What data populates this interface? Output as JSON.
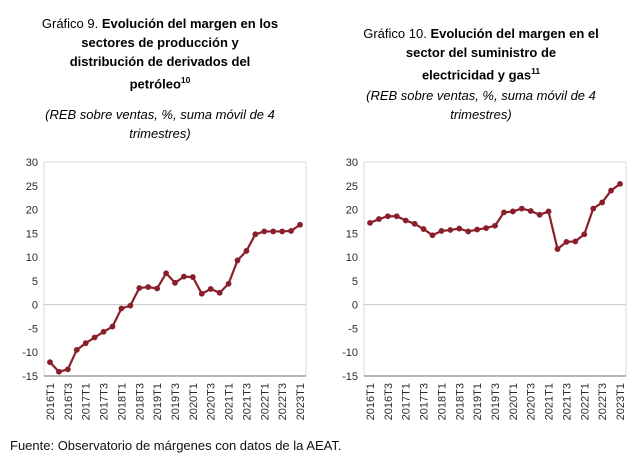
{
  "footer": {
    "text": "Fuente: Observatorio de márgenes con datos de la AEAT."
  },
  "chart_data": [
    {
      "type": "line",
      "title_prefix": "Gráfico 9. ",
      "title_line1": "Evolución del margen en los",
      "title_line2": "sectores de producción y",
      "title_line3": "distribución de derivados del",
      "title_line4": "petróleo",
      "title_footnote": "10",
      "title_full": "Gráfico 9. Evolución del margen en los sectores de producción y distribución de derivados del petróleo",
      "subtitle": "(REB sobre ventas, %, suma móvil de 4 trimestres)",
      "x": [
        "2016T1",
        "2016T2",
        "2016T3",
        "2016T4",
        "2017T1",
        "2017T2",
        "2017T3",
        "2017T4",
        "2018T1",
        "2018T2",
        "2018T3",
        "2018T4",
        "2019T1",
        "2019T2",
        "2019T3",
        "2019T4",
        "2020T1",
        "2020T2",
        "2020T3",
        "2020T4",
        "2021T1",
        "2021T2",
        "2021T3",
        "2021T4",
        "2022T1",
        "2022T2",
        "2022T3",
        "2022T4",
        "2023T1"
      ],
      "x_ticks_shown": [
        "2016T1",
        "2016T3",
        "2017T1",
        "2017T3",
        "2018T1",
        "2018T3",
        "2019T1",
        "2019T3",
        "2020T1",
        "2020T3",
        "2021T1",
        "2021T3",
        "2022T1",
        "2022T3",
        "2023T1"
      ],
      "values": [
        -12.1,
        -14.1,
        -13.6,
        -9.5,
        -8.1,
        -6.9,
        -5.7,
        -4.6,
        -0.8,
        -0.2,
        3.5,
        3.7,
        3.4,
        6.6,
        4.6,
        5.9,
        5.8,
        2.3,
        3.3,
        2.5,
        4.4,
        9.3,
        11.3,
        14.8,
        15.4,
        15.4,
        15.4,
        15.5,
        16.8
      ],
      "ylim": [
        -15,
        30
      ],
      "ytick_step": 5,
      "line_color": "#8a1f2c",
      "marker": "circle",
      "grid": "zero-line-only",
      "legend": "none"
    },
    {
      "type": "line",
      "title_prefix": "Gráfico 10. ",
      "title_line1": "Evolución del margen en el",
      "title_line2": "sector del suministro de",
      "title_line3": "electricidad y gas",
      "title_footnote": "11",
      "title_full": "Gráfico 10. Evolución del margen en el sector del suministro de electricidad y gas",
      "subtitle": "(REB sobre ventas, %, suma móvil de 4 trimestres)",
      "x": [
        "2016T1",
        "2016T2",
        "2016T3",
        "2016T4",
        "2017T1",
        "2017T2",
        "2017T3",
        "2017T4",
        "2018T1",
        "2018T2",
        "2018T3",
        "2018T4",
        "2019T1",
        "2019T2",
        "2019T3",
        "2019T4",
        "2020T1",
        "2020T2",
        "2020T3",
        "2020T4",
        "2021T1",
        "2021T2",
        "2021T3",
        "2021T4",
        "2022T1",
        "2022T2",
        "2022T3",
        "2022T4",
        "2023T1"
      ],
      "x_ticks_shown": [
        "2016T1",
        "2016T3",
        "2017T1",
        "2017T3",
        "2018T1",
        "2018T3",
        "2019T1",
        "2019T3",
        "2020T1",
        "2020T3",
        "2021T1",
        "2021T3",
        "2022T1",
        "2022T3",
        "2023T1"
      ],
      "values": [
        17.2,
        18.0,
        18.6,
        18.6,
        17.7,
        17.0,
        15.9,
        14.6,
        15.5,
        15.7,
        16.0,
        15.4,
        15.8,
        16.1,
        16.6,
        19.4,
        19.6,
        20.2,
        19.7,
        18.9,
        19.6,
        11.7,
        13.2,
        13.3,
        14.8,
        20.2,
        21.5,
        24.0,
        25.4
      ],
      "ylim": [
        -15,
        30
      ],
      "ytick_step": 5,
      "line_color": "#8a1f2c",
      "marker": "circle",
      "grid": "zero-line-only",
      "legend": "none"
    }
  ],
  "style_colors": {
    "plot_border": "#d9d9d9",
    "bottom_axis": "#8c8c8c",
    "zero_line": "#c6c6c6",
    "series_maroon": "#8a1f2c"
  }
}
